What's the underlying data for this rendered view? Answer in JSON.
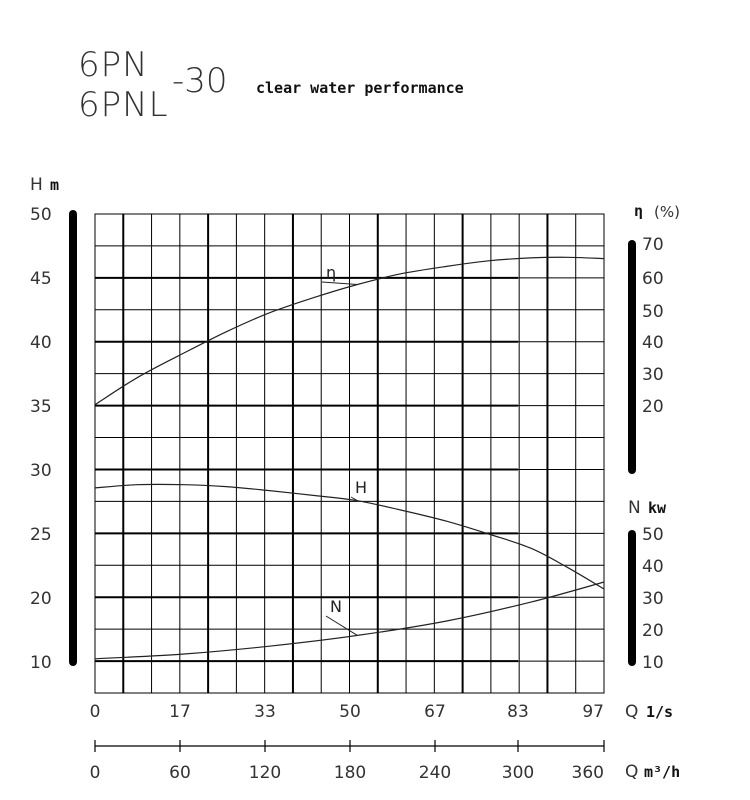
{
  "title": {
    "model_a": "6PN",
    "model_b": "6PNL",
    "suffix": "-30",
    "subtitle": "clear water performance"
  },
  "chart_data": {
    "type": "line",
    "grid": true,
    "x_axis": {
      "name": "Q",
      "unit": "1/s",
      "ticks": [
        "0",
        "17",
        "33",
        "50",
        "67",
        "83",
        "97"
      ],
      "range": [
        0,
        97
      ]
    },
    "x_axis_secondary": {
      "name": "Q",
      "unit": "m³/h",
      "ticks": [
        "0",
        "60",
        "120",
        "180",
        "240",
        "300",
        "360"
      ],
      "range": [
        0,
        360
      ]
    },
    "y_axis_head": {
      "name": "H",
      "unit": "m",
      "ticks": [
        "50",
        "45",
        "40",
        "35",
        "30",
        "25",
        "20",
        "10"
      ]
    },
    "y_axis_efficiency": {
      "name": "η",
      "unit": "(%)",
      "ticks": [
        "70",
        "60",
        "50",
        "40",
        "30",
        "20"
      ]
    },
    "y_axis_power": {
      "name": "N",
      "unit": "kw",
      "ticks": [
        "50",
        "40",
        "30",
        "20",
        "10"
      ]
    },
    "series": [
      {
        "name": "η",
        "label": "η",
        "axis": "efficiency",
        "x": [
          0,
          8,
          17,
          25,
          33,
          42,
          50,
          58,
          67,
          75,
          83,
          90,
          97
        ],
        "y": [
          20.4,
          28.7,
          36.4,
          42.9,
          48.6,
          53.6,
          57.5,
          60.7,
          63.1,
          64.8,
          65.7,
          65.9,
          65.5
        ]
      },
      {
        "name": "H",
        "label": "H",
        "axis": "head",
        "x": [
          0,
          8,
          17,
          25,
          33,
          42,
          50,
          58,
          67,
          75,
          83,
          90,
          97
        ],
        "y": [
          28.6,
          28.85,
          28.85,
          28.7,
          28.4,
          28.0,
          27.6,
          26.9,
          26.0,
          25.0,
          23.9,
          22.4,
          20.7
        ]
      },
      {
        "name": "N",
        "label": "N",
        "axis": "power",
        "x": [
          0,
          17,
          33,
          50,
          67,
          83,
          97
        ],
        "y": [
          11.0,
          12.5,
          14.9,
          18.3,
          22.8,
          28.7,
          35.0
        ]
      }
    ]
  }
}
